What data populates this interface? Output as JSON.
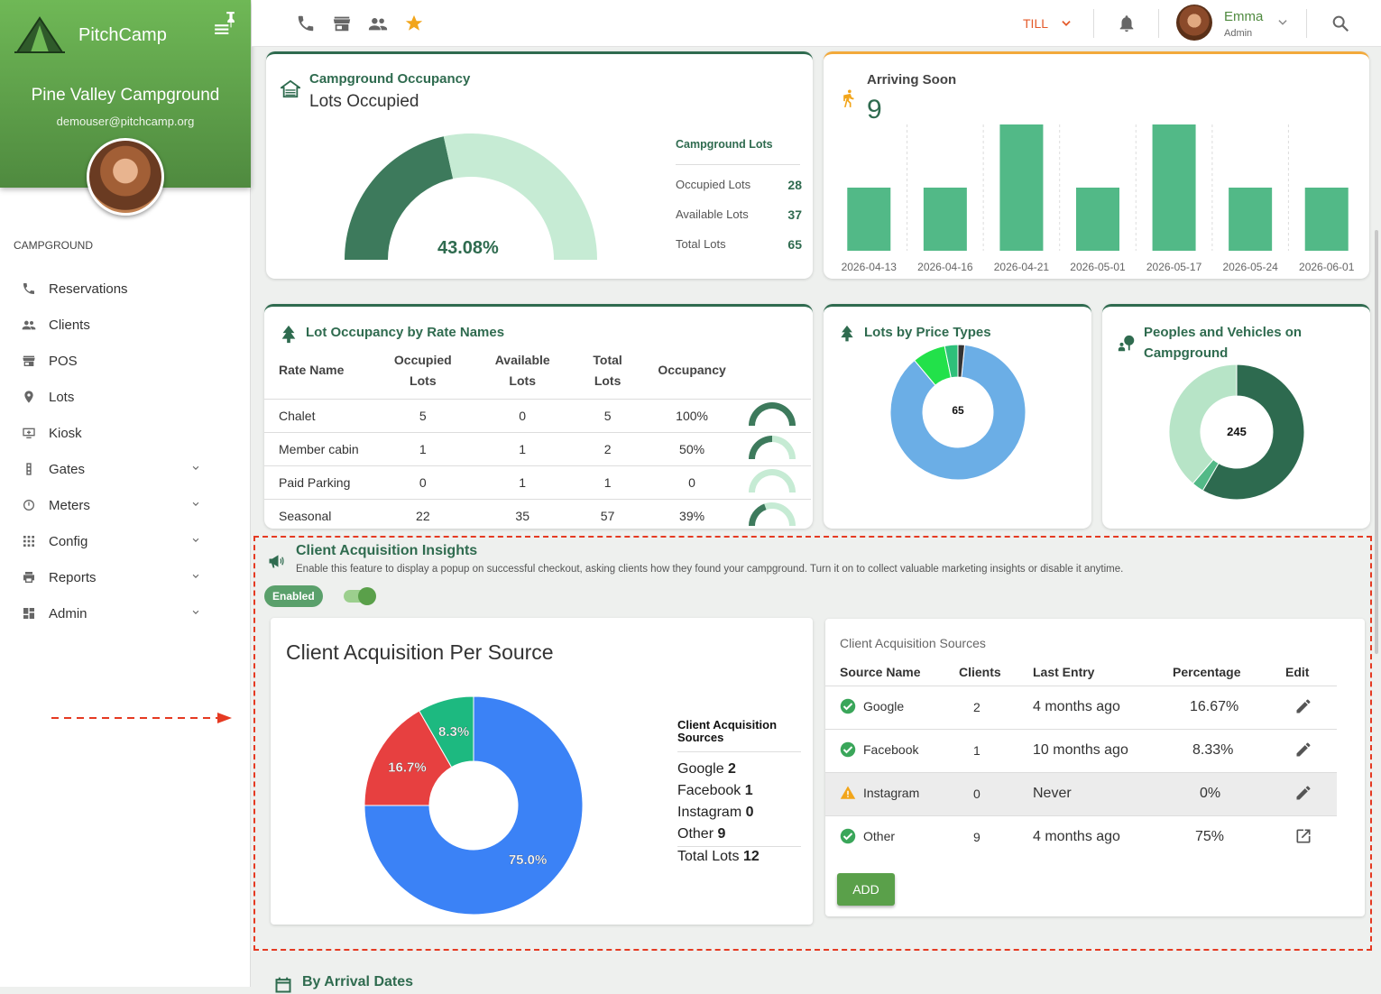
{
  "sidebar": {
    "brand": "PitchCamp",
    "campground_name": "Pine Valley Campground",
    "email": "demouser@pitchcamp.org",
    "section_label": "CAMPGROUND",
    "items": [
      {
        "label": "Reservations"
      },
      {
        "label": "Clients"
      },
      {
        "label": "POS"
      },
      {
        "label": "Lots"
      },
      {
        "label": "Kiosk"
      },
      {
        "label": "Gates"
      },
      {
        "label": "Meters"
      },
      {
        "label": "Config"
      },
      {
        "label": "Reports"
      },
      {
        "label": "Admin"
      }
    ]
  },
  "topbar": {
    "till_label": "TILL",
    "user_name": "Emma",
    "user_role": "Admin"
  },
  "occupancy": {
    "title": "Campground Occupancy",
    "subtitle": "Lots Occupied",
    "percent": "43.08%",
    "occupied_fraction": 0.4308,
    "legend_title": "Campground Lots",
    "rows": [
      {
        "label": "Occupied Lots",
        "value": "28"
      },
      {
        "label": "Available Lots",
        "value": "37"
      },
      {
        "label": "Total Lots",
        "value": "65"
      }
    ],
    "colors": {
      "occupied": "#3d7a5c",
      "available": "#c6ebd4"
    }
  },
  "arriving": {
    "title": "Arriving Soon",
    "count": "9",
    "bar_color": "#52b987"
  },
  "chart_data": [
    {
      "type": "bar",
      "title": "Arriving Soon",
      "categories": [
        "2026-04-13",
        "2026-04-16",
        "2026-04-21",
        "2026-05-01",
        "2026-05-17",
        "2026-05-24",
        "2026-06-01"
      ],
      "values": [
        1,
        1,
        2,
        1,
        2,
        1,
        1
      ],
      "ylim": [
        0,
        2
      ]
    },
    {
      "type": "pie",
      "title": "Lots by Price Types",
      "center_label": "65",
      "values": [
        55,
        5,
        2,
        1
      ],
      "colors": [
        "#6baee6",
        "#22e14a",
        "#2ec07a",
        "#333333"
      ]
    },
    {
      "type": "pie",
      "title": "Peoples and Vehicles on Campground",
      "center_label": "245",
      "values": [
        143,
        7,
        95
      ],
      "colors": [
        "#2d6a4f",
        "#52b987",
        "#b7e4c7"
      ]
    },
    {
      "type": "pie",
      "title": "Client Acquisition Per Source",
      "categories": [
        "Google",
        "Facebook",
        "Instagram",
        "Other"
      ],
      "values": [
        16.7,
        8.3,
        0,
        75.0
      ],
      "labels": [
        "16.7%",
        "8.3%",
        "",
        "75.0%"
      ],
      "colors": [
        "#e74040",
        "#1db980",
        "#f5b800",
        "#3b82f6"
      ]
    }
  ],
  "rate_table": {
    "title": "Lot Occupancy by Rate Names",
    "headers": [
      "Rate Name",
      "Occupied Lots",
      "Available Lots",
      "Total Lots",
      "Occupancy"
    ],
    "rows": [
      {
        "name": "Chalet",
        "occupied": "5",
        "available": "0",
        "total": "5",
        "occupancy": "100%",
        "fraction": 1.0
      },
      {
        "name": "Member cabin",
        "occupied": "1",
        "available": "1",
        "total": "2",
        "occupancy": "50%",
        "fraction": 0.5
      },
      {
        "name": "Paid Parking",
        "occupied": "0",
        "available": "1",
        "total": "1",
        "occupancy": "0",
        "fraction": 0
      },
      {
        "name": "Seasonal",
        "occupied": "22",
        "available": "35",
        "total": "57",
        "occupancy": "39%",
        "fraction": 0.39
      }
    ]
  },
  "price_types": {
    "title": "Lots by Price Types",
    "center": "65"
  },
  "people": {
    "title_line1": "Peoples and Vehicles on",
    "title_line2": "Campground",
    "center": "245"
  },
  "insights": {
    "title": "Client Acquisition Insights",
    "description": "Enable this feature to display a popup on successful checkout, asking clients how they found your campground. Turn it on to collect valuable marketing insights or disable it anytime.",
    "enabled_label": "Enabled",
    "chart_title": "Client Acquisition Per Source",
    "legend_title_line1": "Client Acquisition",
    "legend_title_line2": "Sources",
    "legend": [
      {
        "name": "Google",
        "count": "2"
      },
      {
        "name": "Facebook",
        "count": "1"
      },
      {
        "name": "Instagram",
        "count": "0"
      },
      {
        "name": "Other",
        "count": "9"
      }
    ],
    "total_label": "Total Lots",
    "total_value": "12",
    "table_caption": "Client Acquisition Sources",
    "headers": [
      "Source Name",
      "Clients",
      "Last Entry",
      "Percentage",
      "Edit"
    ],
    "rows": [
      {
        "name": "Google",
        "clients": "2",
        "last": "4 months ago",
        "pct": "16.67%",
        "status": "ok",
        "action": "pencil"
      },
      {
        "name": "Facebook",
        "clients": "1",
        "last": "10 months ago",
        "pct": "8.33%",
        "status": "ok",
        "action": "pencil"
      },
      {
        "name": "Instagram",
        "clients": "0",
        "last": "Never",
        "pct": "0%",
        "status": "warn",
        "action": "pencil"
      },
      {
        "name": "Other",
        "clients": "9",
        "last": "4 months ago",
        "pct": "75%",
        "status": "ok",
        "action": "external"
      }
    ],
    "add_label": "ADD"
  },
  "next_section": {
    "title": "By Arrival Dates"
  }
}
